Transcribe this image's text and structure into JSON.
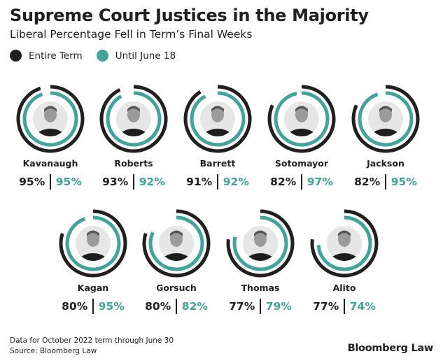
{
  "title": "Supreme Court Justices in the Majority",
  "subtitle": "Liberal Percentage Fell in Term’s Final Weeks",
  "colors": {
    "entire_term": "#231f20",
    "until_june_18": "#3fa59b"
  },
  "chart_data": {
    "type": "radial-bar",
    "legend": [
      {
        "name": "Entire Term",
        "color": "#231f20"
      },
      {
        "name": "Until June 18",
        "color": "#3fa59b"
      }
    ],
    "unit": "%",
    "range": [
      0,
      100
    ],
    "justices": [
      {
        "name": "Kavanaugh",
        "entire_term": 95,
        "until_june_18": 95
      },
      {
        "name": "Roberts",
        "entire_term": 93,
        "until_june_18": 92
      },
      {
        "name": "Barrett",
        "entire_term": 91,
        "until_june_18": 92
      },
      {
        "name": "Sotomayor",
        "entire_term": 82,
        "until_june_18": 97
      },
      {
        "name": "Jackson",
        "entire_term": 82,
        "until_june_18": 95
      },
      {
        "name": "Kagan",
        "entire_term": 80,
        "until_june_18": 95
      },
      {
        "name": "Gorsuch",
        "entire_term": 80,
        "until_june_18": 82
      },
      {
        "name": "Thomas",
        "entire_term": 77,
        "until_june_18": 79
      },
      {
        "name": "Alito",
        "entire_term": 77,
        "until_june_18": 74
      }
    ]
  },
  "footer": {
    "note": "Data for October 2022 term through June 30",
    "source": "Source: Bloomberg Law"
  },
  "logo": "Bloomberg Law"
}
